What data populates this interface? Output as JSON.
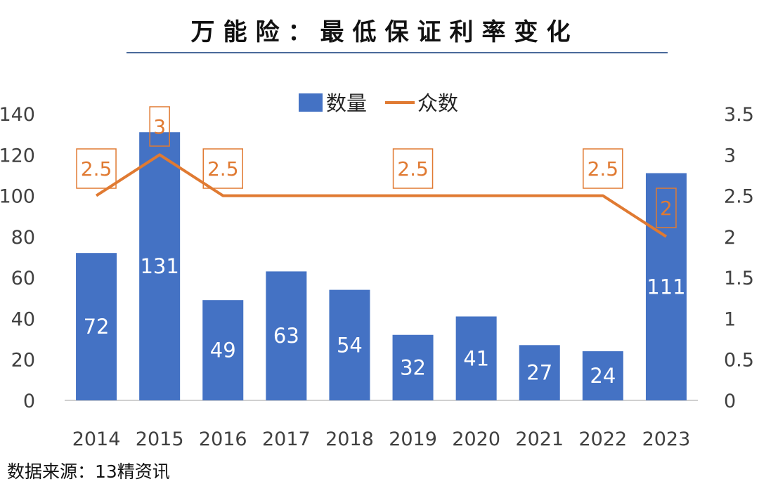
{
  "chart_data": {
    "type": "bar+line",
    "title": "万能险：最低保证利率变化",
    "categories": [
      "2014",
      "2015",
      "2016",
      "2017",
      "2018",
      "2019",
      "2020",
      "2021",
      "2022",
      "2023"
    ],
    "series": [
      {
        "name": "数量",
        "type": "bar",
        "axis": "left",
        "color": "#4472c4",
        "values": [
          72,
          131,
          49,
          63,
          54,
          32,
          41,
          27,
          24,
          111
        ]
      },
      {
        "name": "众数",
        "type": "line",
        "axis": "right",
        "color": "#e07a32",
        "values": [
          2.5,
          3,
          2.5,
          2.5,
          2.5,
          2.5,
          2.5,
          2.5,
          2.5,
          2
        ]
      }
    ],
    "line_labels": {
      "0": "2.5",
      "1": "3",
      "2": "2.5",
      "5": "2.5",
      "8": "2.5",
      "9": "2"
    },
    "y_left": {
      "range": [
        0,
        140
      ],
      "ticks": [
        "0",
        "20",
        "40",
        "60",
        "80",
        "100",
        "120",
        "140"
      ]
    },
    "y_right": {
      "range": [
        0,
        3.5
      ],
      "ticks": [
        "0",
        "0.5",
        "1",
        "1.5",
        "2",
        "2.5",
        "3",
        "3.5"
      ]
    },
    "legend": "top-center",
    "grid": false
  },
  "source": "数据来源：13精资讯"
}
